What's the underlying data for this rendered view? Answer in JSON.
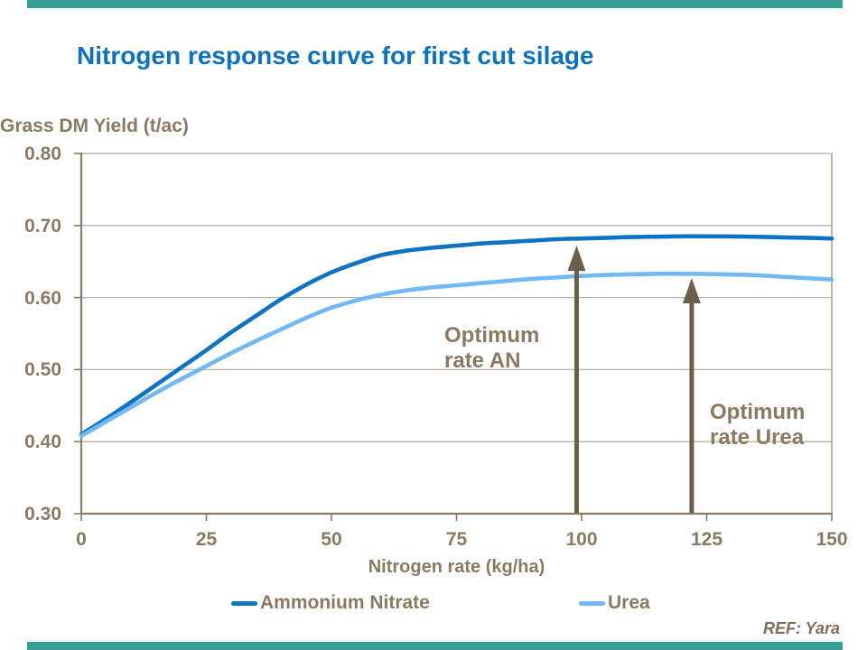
{
  "title": "Nitrogen response curve for first cut silage",
  "footer": {
    "ref": "REF: Yara"
  },
  "colors": {
    "title": "#0C72BE",
    "text_brown": "#8A7A62",
    "axis": "#8A7C66",
    "gridline": "#BDB3A4",
    "arrow": "#6C5F4C",
    "accent_bar": "#35A096",
    "series_ammonium_nitrate": "#0E73C2",
    "series_urea": "#71B8F4"
  },
  "chart_data": {
    "type": "line",
    "title": "Nitrogen response curve for first cut silage",
    "xlabel": "Nitrogen rate (kg/ha)",
    "ylabel": "Grass DM Yield (t/ac)",
    "xlim": [
      0,
      150
    ],
    "ylim": [
      0.3,
      0.8
    ],
    "x_ticks": [
      0,
      25,
      50,
      75,
      100,
      125,
      150
    ],
    "y_ticks": [
      0.8,
      0.7,
      0.6,
      0.5,
      0.4,
      0.3
    ],
    "y_tick_labels": [
      "0.80",
      "0.70",
      "0.60",
      "0.50",
      "0.40",
      "0.30"
    ],
    "grid": "horizontal",
    "legend_position": "bottom",
    "x": [
      0,
      5,
      10,
      15,
      20,
      25,
      30,
      35,
      40,
      45,
      50,
      55,
      60,
      65,
      70,
      75,
      80,
      85,
      90,
      95,
      100,
      105,
      110,
      115,
      120,
      125,
      130,
      135,
      140,
      145,
      150
    ],
    "series": [
      {
        "name": "Ammonium Nitrate",
        "color": "#0E73C2",
        "values": [
          0.41,
          0.432,
          0.455,
          0.479,
          0.503,
          0.527,
          0.552,
          0.575,
          0.598,
          0.618,
          0.635,
          0.648,
          0.659,
          0.665,
          0.669,
          0.672,
          0.675,
          0.677,
          0.679,
          0.681,
          0.682,
          0.683,
          0.684,
          0.6845,
          0.685,
          0.685,
          0.6848,
          0.6843,
          0.6836,
          0.683,
          0.682
        ]
      },
      {
        "name": "Urea",
        "color": "#71B8F4",
        "values": [
          0.408,
          0.428,
          0.448,
          0.468,
          0.487,
          0.505,
          0.523,
          0.54,
          0.556,
          0.572,
          0.586,
          0.596,
          0.604,
          0.61,
          0.614,
          0.617,
          0.62,
          0.623,
          0.626,
          0.628,
          0.63,
          0.6313,
          0.6323,
          0.633,
          0.633,
          0.6327,
          0.632,
          0.631,
          0.629,
          0.627,
          0.625
        ]
      }
    ],
    "annotations": [
      {
        "label": "Optimum rate AN",
        "lines": [
          "Optimum",
          "rate AN"
        ],
        "arrow_x": 99,
        "arrow_tip_value": 0.672
      },
      {
        "label": "Optimum rate Urea",
        "lines": [
          "Optimum",
          "rate Urea"
        ],
        "arrow_x": 122,
        "arrow_tip_value": 0.627
      }
    ]
  }
}
